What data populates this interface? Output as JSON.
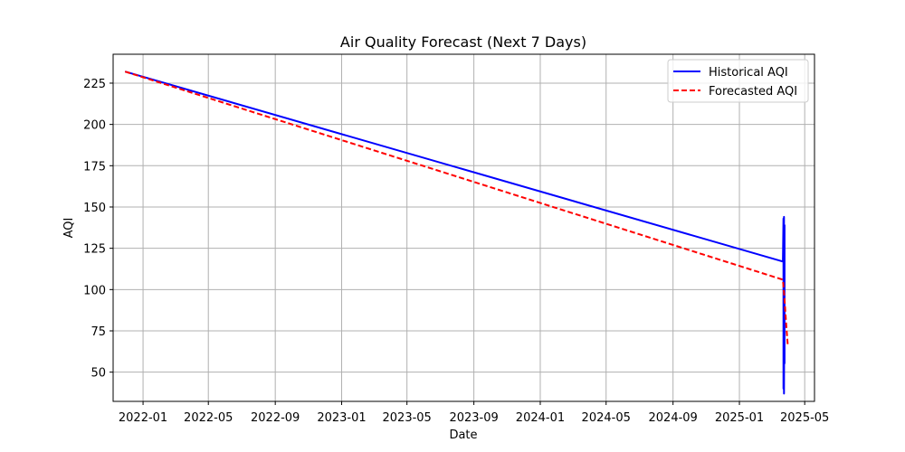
{
  "chart_data": {
    "type": "line",
    "title": "Air Quality Forecast (Next 7 Days)",
    "xlabel": "Date",
    "ylabel": "AQI",
    "x_axis_type": "date",
    "xlim": [
      "2021-11-07",
      "2025-05-19"
    ],
    "ylim": [
      32.3,
      242.5
    ],
    "x_ticks": [
      "2022-01",
      "2022-05",
      "2022-09",
      "2023-01",
      "2023-05",
      "2023-09",
      "2024-01",
      "2024-05",
      "2024-09",
      "2025-01",
      "2025-05"
    ],
    "y_ticks": [
      50,
      75,
      100,
      125,
      150,
      175,
      200,
      225
    ],
    "grid": true,
    "legend_position": "top-right",
    "series": [
      {
        "name": "Historical AQI",
        "color": "#0000ff",
        "line_style": "solid",
        "points": [
          {
            "x": "2021-11-29",
            "y": 232
          },
          {
            "x": "2025-03-22",
            "y": 117
          },
          {
            "x": "2025-03-23",
            "y": 143
          },
          {
            "x": "2025-03-23",
            "y": 40
          },
          {
            "x": "2025-03-24",
            "y": 144
          },
          {
            "x": "2025-03-24",
            "y": 37
          },
          {
            "x": "2025-03-25",
            "y": 139
          },
          {
            "x": "2025-03-25",
            "y": 55
          }
        ]
      },
      {
        "name": "Forecasted AQI",
        "color": "#ff0000",
        "line_style": "dashed",
        "points": [
          {
            "x": "2021-11-29",
            "y": 232
          },
          {
            "x": "2025-03-22",
            "y": 106
          },
          {
            "x": "2025-03-25",
            "y": 94
          },
          {
            "x": "2025-03-28",
            "y": 79
          },
          {
            "x": "2025-03-31",
            "y": 66
          }
        ]
      }
    ]
  }
}
